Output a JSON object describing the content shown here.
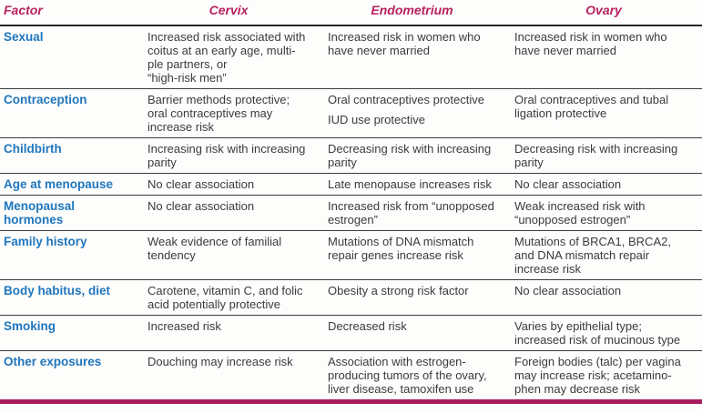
{
  "colors": {
    "header_magenta": "#b8215f",
    "label_blue": "#1f76bd",
    "bottom_bar": "#a81b5c"
  },
  "table": {
    "headers": {
      "factor": "Factor",
      "cervix": "Cervix",
      "endometrium": "Endometrium",
      "ovary": "Ovary"
    },
    "rows": [
      {
        "factor": "Sexual",
        "cervix": "Increased risk associated with\ncoitus at an early age, multi-\nple partners, or\n“high-risk men”",
        "endometrium": "Increased risk in women who\nhave never married",
        "ovary": "Increased risk in women who\nhave never married"
      },
      {
        "factor": "Contraception",
        "cervix": "Barrier methods protective;\noral contraceptives may\nincrease risk",
        "endometrium": [
          "Oral contraceptives protective",
          "IUD use protective"
        ],
        "ovary": "Oral contraceptives and tubal\nligation protective"
      },
      {
        "factor": "Childbirth",
        "cervix": "Increasing risk with increasing\nparity",
        "endometrium": "Decreasing risk with increasing\nparity",
        "ovary": "Decreasing risk with increasing\nparity"
      },
      {
        "factor": "Age at menopause",
        "cervix": "No clear association",
        "endometrium": "Late menopause increases risk",
        "ovary": "No clear association"
      },
      {
        "factor": "Menopausal hormones",
        "cervix": "No clear association",
        "endometrium": "Increased risk from “unopposed\nestrogen”",
        "ovary": "Weak increased risk with\n“unopposed estrogen”"
      },
      {
        "factor": "Family history",
        "cervix": "Weak evidence of familial\ntendency",
        "endometrium": "Mutations of DNA mismatch\nrepair genes increase risk",
        "ovary": "Mutations of BRCA1, BRCA2,\nand DNA mismatch repair\nincrease risk"
      },
      {
        "factor": "Body habitus, diet",
        "cervix": "Carotene, vitamin C, and folic\nacid potentially protective",
        "endometrium": "Obesity a strong risk factor",
        "ovary": "No clear association"
      },
      {
        "factor": "Smoking",
        "cervix": "Increased risk",
        "endometrium": "Decreased risk",
        "ovary": "Varies by epithelial type;\nincreased risk of mucinous type"
      },
      {
        "factor": "Other exposures",
        "cervix": "Douching may increase risk",
        "endometrium": "Association with estrogen-\nproducing tumors of the ovary,\nliver disease, tamoxifen use",
        "ovary": "Foreign bodies (talc) per vagina\nmay increase risk; acetamino-\nphen may decrease risk"
      }
    ]
  }
}
